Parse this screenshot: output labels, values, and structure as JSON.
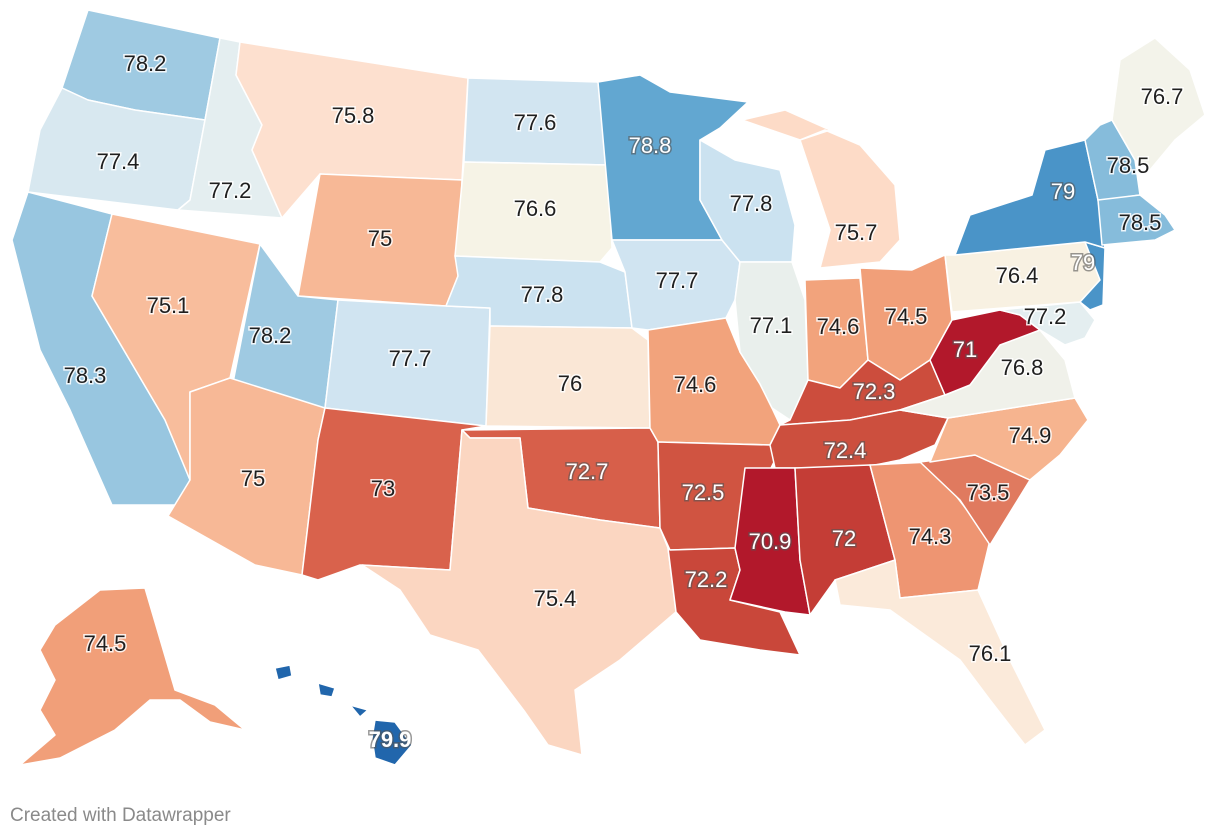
{
  "credit": "Created with Datawrapper",
  "colors": {
    "v70_9": "#b2182b",
    "v71": "#b2182b",
    "v72": "#c43d36",
    "v72_2": "#c9473a",
    "v72_3": "#cc4d3d",
    "v72_4": "#cc4f3e",
    "v72_5": "#d05441",
    "v72_7": "#d75f4a",
    "v73": "#d9624c",
    "v73_5": "#e07a5f",
    "v74_3": "#ee9572",
    "v74_5": "#f19f79",
    "v74_6": "#f2a37c",
    "v74_9": "#f6b48f",
    "v75": "#f7b896",
    "v75_1": "#f8bd9c",
    "v75_4": "#fbd6c1",
    "v75_7": "#fddbc7",
    "v75_8": "#fde0cf",
    "v76": "#fae7d6",
    "v76_1": "#fbeada",
    "v76_4": "#f8f1e2",
    "v76_6": "#f6f3e6",
    "v76_7": "#f3f3ea",
    "v76_8": "#f0f1ea",
    "v77_1": "#e9efec",
    "v77_2": "#e4eef0",
    "v77_4": "#d8e8f0",
    "v77_6": "#d2e5f1",
    "v77_7": "#d0e4f1",
    "v77_8": "#cbe2f0",
    "v78_2": "#9fcae2",
    "v78_3": "#98c6e0",
    "v78_5": "#86bcdb",
    "v78_8": "#62a7d1",
    "v79": "#4a94c8",
    "v79_9": "#2166ac"
  },
  "states": [
    {
      "name": "Washington",
      "value": "78.2"
    },
    {
      "name": "Oregon",
      "value": "77.4"
    },
    {
      "name": "California",
      "value": "78.3"
    },
    {
      "name": "Idaho",
      "value": "77.2"
    },
    {
      "name": "Nevada",
      "value": "75.1"
    },
    {
      "name": "Montana",
      "value": "75.8"
    },
    {
      "name": "Wyoming",
      "value": "75"
    },
    {
      "name": "Utah",
      "value": "78.2"
    },
    {
      "name": "Arizona",
      "value": "75"
    },
    {
      "name": "Colorado",
      "value": "77.7"
    },
    {
      "name": "New Mexico",
      "value": "73"
    },
    {
      "name": "North Dakota",
      "value": "77.6"
    },
    {
      "name": "South Dakota",
      "value": "76.6"
    },
    {
      "name": "Nebraska",
      "value": "77.8"
    },
    {
      "name": "Kansas",
      "value": "76"
    },
    {
      "name": "Oklahoma",
      "value": "72.7"
    },
    {
      "name": "Texas",
      "value": "75.4"
    },
    {
      "name": "Minnesota",
      "value": "78.8"
    },
    {
      "name": "Iowa",
      "value": "77.7"
    },
    {
      "name": "Missouri",
      "value": "74.6"
    },
    {
      "name": "Arkansas",
      "value": "72.5"
    },
    {
      "name": "Louisiana",
      "value": "72.2"
    },
    {
      "name": "Wisconsin",
      "value": "77.8"
    },
    {
      "name": "Illinois",
      "value": "77.1"
    },
    {
      "name": "Michigan",
      "value": "75.7"
    },
    {
      "name": "Indiana",
      "value": "74.6"
    },
    {
      "name": "Ohio",
      "value": "74.5"
    },
    {
      "name": "Kentucky",
      "value": "72.3"
    },
    {
      "name": "Tennessee",
      "value": "72.4"
    },
    {
      "name": "Mississippi",
      "value": "70.9"
    },
    {
      "name": "Alabama",
      "value": "72"
    },
    {
      "name": "Georgia",
      "value": "74.3"
    },
    {
      "name": "Florida",
      "value": "76.1"
    },
    {
      "name": "South Carolina",
      "value": "73.5"
    },
    {
      "name": "North Carolina",
      "value": "74.9"
    },
    {
      "name": "Virginia",
      "value": "76.8"
    },
    {
      "name": "West Virginia",
      "value": "71"
    },
    {
      "name": "Maryland",
      "value": "77.2"
    },
    {
      "name": "Pennsylvania",
      "value": "76.4"
    },
    {
      "name": "New Jersey",
      "value": "79"
    },
    {
      "name": "New York",
      "value": "79"
    },
    {
      "name": "New Hampshire",
      "value": "78.5"
    },
    {
      "name": "Massachusetts",
      "value": "78.5"
    },
    {
      "name": "Maine",
      "value": "76.7"
    },
    {
      "name": "Alaska",
      "value": "74.5"
    },
    {
      "name": "Hawaii",
      "value": "79.9"
    }
  ]
}
